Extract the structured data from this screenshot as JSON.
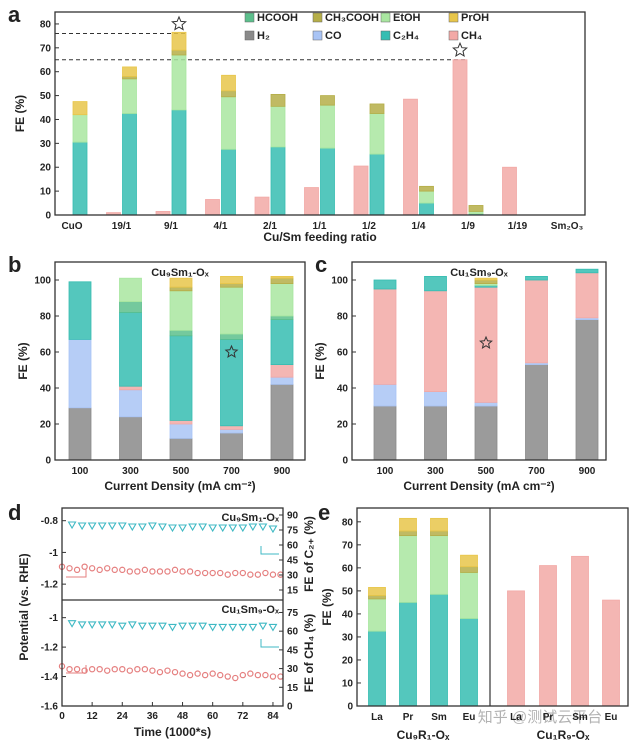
{
  "colors": {
    "H2": "#8a8a8a",
    "CO": "#a9c4f5",
    "CH4": "#f2a9a6",
    "C2H4": "#36bdb2",
    "HCOOH": "#5cbf8c",
    "EtOH": "#a9e6a0",
    "CH3COOH": "#b5ae48",
    "PrOH": "#e8c64a",
    "potential": "#e57f7f",
    "fe_marker": "#3fb9c4"
  },
  "chart_data": [
    {
      "panel": "a",
      "type": "bar",
      "stacked": true,
      "xlabel": "Cu/Sm feeding ratio",
      "ylabel": "FE (%)",
      "ylim": [
        0,
        85
      ],
      "yticks": [
        0,
        10,
        20,
        30,
        40,
        50,
        60,
        70,
        80
      ],
      "categories": [
        "CuO",
        "19/1",
        "9/1",
        "4/1",
        "2/1",
        "1/1",
        "1/2",
        "1/4",
        "1/9",
        "1/19",
        "Sm₂O₃"
      ],
      "legend": {
        "placement": "top-center",
        "entries": [
          {
            "key": "HCOOH",
            "label": "HCOOH"
          },
          {
            "key": "CH3COOH",
            "label": "CH₃COOH"
          },
          {
            "key": "EtOH",
            "label": "EtOH"
          },
          {
            "key": "PrOH",
            "label": "PrOH"
          },
          {
            "key": "H2",
            "label": "H₂"
          },
          {
            "key": "CO",
            "label": "CO"
          },
          {
            "key": "C2H4",
            "label": "C₂H₄"
          },
          {
            "key": "CH4",
            "label": "CH₄"
          }
        ]
      },
      "ch4_bar": {
        "key": "CH4",
        "values": [
          0,
          1,
          1.5,
          6.5,
          7.5,
          11.5,
          20.5,
          48.5,
          65,
          20,
          0
        ]
      },
      "c2_stack": [
        {
          "key": "C2H4",
          "values": [
            30.5,
            42.5,
            44,
            27.5,
            28.5,
            28,
            25.5,
            5,
            0.5,
            0,
            0
          ]
        },
        {
          "key": "EtOH",
          "values": [
            11.5,
            14.5,
            23,
            22,
            17,
            18,
            17,
            5,
            1,
            0,
            0
          ]
        },
        {
          "key": "CH3COOH",
          "values": [
            0,
            1,
            2,
            2.5,
            5,
            4,
            4,
            2,
            2.5,
            0,
            0
          ]
        },
        {
          "key": "PrOH",
          "values": [
            5.5,
            4,
            7.5,
            6.5,
            0,
            0,
            0,
            0,
            0,
            0,
            0
          ]
        },
        {
          "key": "HCOOH",
          "values": [
            0,
            0,
            0,
            0,
            0,
            0,
            0,
            0,
            0,
            0,
            0
          ]
        }
      ],
      "reference_lines": [
        76,
        65
      ],
      "star_markers": [
        {
          "category": "9/1",
          "value": 80
        },
        {
          "category": "1/9",
          "value": 69
        }
      ]
    },
    {
      "panel": "b",
      "type": "bar",
      "stacked": true,
      "title": "Cu₉Sm₁-Oₓ",
      "xlabel": "Current Density (mA cm⁻²)",
      "ylabel": "FE (%)",
      "ylim": [
        0,
        110
      ],
      "yticks": [
        0,
        20,
        40,
        60,
        80,
        100
      ],
      "categories": [
        "100",
        "300",
        "500",
        "700",
        "900"
      ],
      "series": [
        {
          "key": "H2",
          "values": [
            29,
            24,
            12,
            15,
            42
          ]
        },
        {
          "key": "CO",
          "values": [
            38,
            15,
            8,
            2,
            4
          ]
        },
        {
          "key": "CH4",
          "values": [
            0,
            2,
            2,
            2,
            7
          ]
        },
        {
          "key": "C2H4",
          "values": [
            32,
            41,
            47,
            48,
            25
          ]
        },
        {
          "key": "HCOOH",
          "values": [
            0,
            6,
            3,
            3,
            2
          ]
        },
        {
          "key": "EtOH",
          "values": [
            0,
            13,
            22,
            26,
            18
          ]
        },
        {
          "key": "CH3COOH",
          "values": [
            0,
            0,
            2,
            2,
            3
          ]
        },
        {
          "key": "PrOH",
          "values": [
            0,
            0,
            5,
            4,
            1
          ]
        }
      ],
      "star_markers": [
        {
          "category": "700",
          "value": 60
        }
      ]
    },
    {
      "panel": "c",
      "type": "bar",
      "stacked": true,
      "title": "Cu₁Sm₉-Oₓ",
      "xlabel": "Current Density (mA cm⁻²)",
      "ylabel": "FE (%)",
      "ylim": [
        0,
        110
      ],
      "yticks": [
        0,
        20,
        40,
        60,
        80,
        100
      ],
      "categories": [
        "100",
        "300",
        "500",
        "700",
        "900"
      ],
      "series": [
        {
          "key": "H2",
          "values": [
            30,
            30,
            30,
            53,
            78
          ]
        },
        {
          "key": "CO",
          "values": [
            12,
            8,
            2,
            1,
            1
          ]
        },
        {
          "key": "CH4",
          "values": [
            53,
            56,
            64,
            46,
            25
          ]
        },
        {
          "key": "C2H4",
          "values": [
            5,
            8,
            1,
            2,
            2
          ]
        },
        {
          "key": "HCOOH",
          "values": [
            0,
            0,
            0,
            0,
            0
          ]
        },
        {
          "key": "EtOH",
          "values": [
            0,
            0,
            1,
            0,
            0
          ]
        },
        {
          "key": "CH3COOH",
          "values": [
            0,
            0,
            2,
            0,
            0
          ]
        },
        {
          "key": "PrOH",
          "values": [
            0,
            0,
            1,
            0,
            0
          ]
        }
      ],
      "star_markers": [
        {
          "category": "500",
          "value": 65
        }
      ]
    },
    {
      "panel": "d",
      "type": "scatter",
      "xlabel": "Time (1000*s)",
      "ylabel": "Potential (vs. RHE)",
      "xlim": [
        0,
        88
      ],
      "xticks": [
        0,
        12,
        24,
        36,
        48,
        60,
        72,
        84
      ],
      "subplots": [
        {
          "title": "Cu₉Sm₁-Oₓ",
          "ylim": [
            -1.3,
            -0.72
          ],
          "yticks": [
            -0.8,
            -1.0,
            -1.2
          ],
          "y2label": "FE of C₂₊ (%)",
          "y2lim": [
            5,
            97
          ],
          "y2ticks": [
            15,
            30,
            45,
            60,
            75,
            90
          ],
          "potential": {
            "t": [
              0,
              3,
              6,
              9,
              12,
              15,
              18,
              21,
              24,
              27,
              30,
              33,
              36,
              39,
              42,
              45,
              48,
              51,
              54,
              57,
              60,
              63,
              66,
              69,
              72,
              75,
              78,
              81,
              84,
              87
            ],
            "values": [
              -1.09,
              -1.1,
              -1.11,
              -1.09,
              -1.1,
              -1.11,
              -1.1,
              -1.11,
              -1.11,
              -1.12,
              -1.12,
              -1.11,
              -1.12,
              -1.12,
              -1.12,
              -1.11,
              -1.12,
              -1.12,
              -1.13,
              -1.13,
              -1.13,
              -1.13,
              -1.14,
              -1.13,
              -1.13,
              -1.14,
              -1.14,
              -1.13,
              -1.14,
              -1.14
            ]
          },
          "fe": {
            "t": [
              4,
              8,
              12,
              16,
              20,
              24,
              28,
              32,
              36,
              40,
              44,
              48,
              52,
              56,
              60,
              64,
              68,
              72,
              76,
              80,
              84
            ],
            "values": [
              80,
              79,
              79,
              79,
              79,
              79,
              78,
              78,
              79,
              78,
              77,
              77,
              78,
              78,
              77,
              77,
              77,
              77,
              78,
              78,
              76
            ]
          }
        },
        {
          "title": "Cu₁Sm₉-Oₓ",
          "ylim": [
            -1.6,
            -0.88
          ],
          "yticks": [
            -1.0,
            -1.2,
            -1.4,
            -1.6
          ],
          "y2label": "FE of CH₄ (%)",
          "y2lim": [
            0,
            85
          ],
          "y2ticks": [
            0,
            15,
            30,
            45,
            60,
            75
          ],
          "potential": {
            "t": [
              0,
              3,
              6,
              9,
              12,
              15,
              18,
              21,
              24,
              27,
              30,
              33,
              36,
              39,
              42,
              45,
              48,
              51,
              54,
              57,
              60,
              63,
              66,
              69,
              72,
              75,
              78,
              81,
              84,
              87
            ],
            "values": [
              -1.33,
              -1.35,
              -1.35,
              -1.36,
              -1.35,
              -1.35,
              -1.36,
              -1.35,
              -1.35,
              -1.36,
              -1.35,
              -1.35,
              -1.36,
              -1.37,
              -1.36,
              -1.37,
              -1.38,
              -1.39,
              -1.38,
              -1.39,
              -1.38,
              -1.39,
              -1.4,
              -1.41,
              -1.39,
              -1.38,
              -1.39,
              -1.39,
              -1.4,
              -1.4
            ]
          },
          "fe": {
            "t": [
              4,
              8,
              12,
              16,
              20,
              24,
              28,
              32,
              36,
              40,
              44,
              48,
              52,
              56,
              60,
              64,
              68,
              72,
              76,
              80,
              84
            ],
            "values": [
              66,
              65,
              65,
              65,
              65,
              64,
              65,
              64,
              64,
              64,
              63,
              64,
              64,
              64,
              63,
              63,
              63,
              63,
              63,
              64,
              63
            ]
          }
        }
      ]
    },
    {
      "panel": "e",
      "type": "bar",
      "stacked": true,
      "ylabel": "FE (%)",
      "ylim": [
        0,
        86
      ],
      "yticks": [
        0,
        10,
        20,
        30,
        40,
        50,
        60,
        70,
        80
      ],
      "groups": [
        {
          "label": "Cu₉R₁-Oₓ",
          "categories": [
            "La",
            "Pr",
            "Sm",
            "Eu"
          ],
          "series": [
            {
              "key": "C2H4",
              "values": [
                32.5,
                45,
                48.5,
                38
              ]
            },
            {
              "key": "EtOH",
              "values": [
                14,
                29,
                25.5,
                20
              ]
            },
            {
              "key": "CH3COOH",
              "values": [
                1.5,
                2,
                2,
                2.5
              ]
            },
            {
              "key": "PrOH",
              "values": [
                3.5,
                5.5,
                5.5,
                5
              ]
            }
          ]
        },
        {
          "label": "Cu₁R₉-Oₓ",
          "categories": [
            "La",
            "Pr",
            "Sm",
            "Eu"
          ],
          "series": [
            {
              "key": "CH4",
              "values": [
                50,
                61,
                65,
                46
              ]
            }
          ]
        }
      ]
    }
  ],
  "panel_labels": [
    "a",
    "b",
    "c",
    "d",
    "e"
  ],
  "watermark": "知乎 @测试云平台"
}
